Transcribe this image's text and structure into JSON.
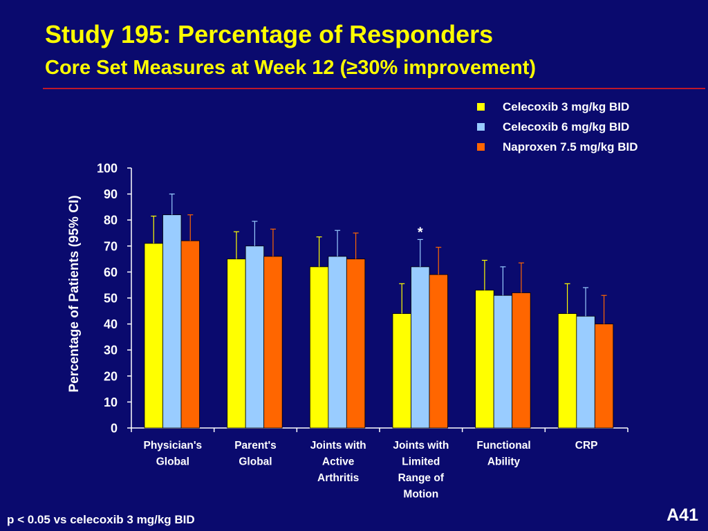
{
  "slide": {
    "title": "Study 195:  Percentage of Responders",
    "subtitle": "Core Set Measures at Week 12 (≥30% improvement)",
    "footnote": "p < 0.05 vs celecoxib 3 mg/kg BID",
    "slide_number": "A41"
  },
  "chart_data": {
    "type": "bar",
    "title": "Study 195:  Percentage of Responders",
    "ylabel": "Percentage of Patients (95% CI)",
    "xlabel": "",
    "ylim": [
      0,
      100
    ],
    "yticks": [
      0,
      10,
      20,
      30,
      40,
      50,
      60,
      70,
      80,
      90,
      100
    ],
    "grid": false,
    "legend_position": "top-right",
    "categories": [
      [
        "Physician's",
        "Global"
      ],
      [
        "Parent's",
        "Global"
      ],
      [
        "Joints with",
        "Active",
        "Arthritis"
      ],
      [
        "Joints with",
        "Limited",
        "Range of",
        "Motion"
      ],
      [
        "Functional",
        "Ability"
      ],
      [
        "CRP"
      ]
    ],
    "series": [
      {
        "name": "Celecoxib 3 mg/kg BID",
        "color": "#ffff00",
        "values": [
          71,
          65,
          62,
          44,
          53,
          44
        ],
        "ci_upper": [
          81.5,
          75.5,
          73.5,
          55.5,
          64.5,
          55.5
        ]
      },
      {
        "name": "Celecoxib 6 mg/kg BID",
        "color": "#99ccff",
        "values": [
          82,
          70,
          66,
          62,
          51,
          43
        ],
        "ci_upper": [
          90,
          79.5,
          76,
          72.5,
          62,
          54
        ]
      },
      {
        "name": "Naproxen 7.5 mg/kg BID",
        "color": "#ff6600",
        "values": [
          72,
          66,
          65,
          59,
          52,
          40
        ],
        "ci_upper": [
          82,
          76.5,
          75,
          69.5,
          63.5,
          51
        ]
      }
    ],
    "annotations": [
      {
        "text": "*",
        "category_index": 3,
        "series_index": 1
      }
    ]
  }
}
